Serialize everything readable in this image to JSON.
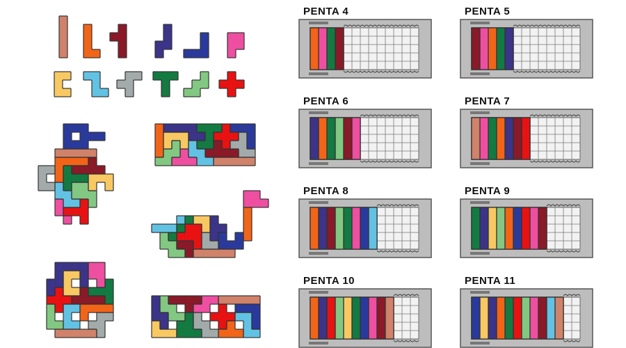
{
  "palette": {
    "I": "#d0826a",
    "L": "#f26418",
    "Y": "#8a1a28",
    "N": "#3b3488",
    "V": "#2a3a9c",
    "P": "#ee4fa0",
    "U": "#f8c862",
    "Z": "#62c2e4",
    "F": "#a2aaaa",
    "T": "#137a42",
    "W": "#82c882",
    "X": "#e81212"
  },
  "pieces": [
    "I",
    "L",
    "Y",
    "N",
    "V",
    "P",
    "U",
    "Z",
    "F",
    "T",
    "W",
    "X"
  ],
  "boards": [
    {
      "title": "PENTA 4",
      "count": 4,
      "colors": [
        "L",
        "P",
        "T",
        "Y"
      ]
    },
    {
      "title": "PENTA 5",
      "count": 5,
      "colors": [
        "Y",
        "P",
        "L",
        "T",
        "N"
      ]
    },
    {
      "title": "PENTA 6",
      "count": 6,
      "colors": [
        "N",
        "L",
        "T",
        "W",
        "Y",
        "P"
      ]
    },
    {
      "title": "PENTA 7",
      "count": 7,
      "colors": [
        "I",
        "P",
        "T",
        "L",
        "N",
        "Y",
        "X"
      ]
    },
    {
      "title": "PENTA 8",
      "count": 8,
      "colors": [
        "L",
        "N",
        "Y",
        "W",
        "T",
        "P",
        "V",
        "Z"
      ]
    },
    {
      "title": "PENTA 9",
      "count": 9,
      "colors": [
        "T",
        "N",
        "U",
        "W",
        "L",
        "V",
        "X",
        "P",
        "Y"
      ]
    },
    {
      "title": "PENTA 10",
      "count": 10,
      "colors": [
        "L",
        "N",
        "X",
        "W",
        "U",
        "T",
        "V",
        "P",
        "Y",
        "I"
      ]
    },
    {
      "title": "PENTA 11",
      "count": 11,
      "colors": [
        "V",
        "U",
        "N",
        "L",
        "T",
        "X",
        "W",
        "P",
        "Y",
        "Z",
        "I"
      ]
    }
  ]
}
